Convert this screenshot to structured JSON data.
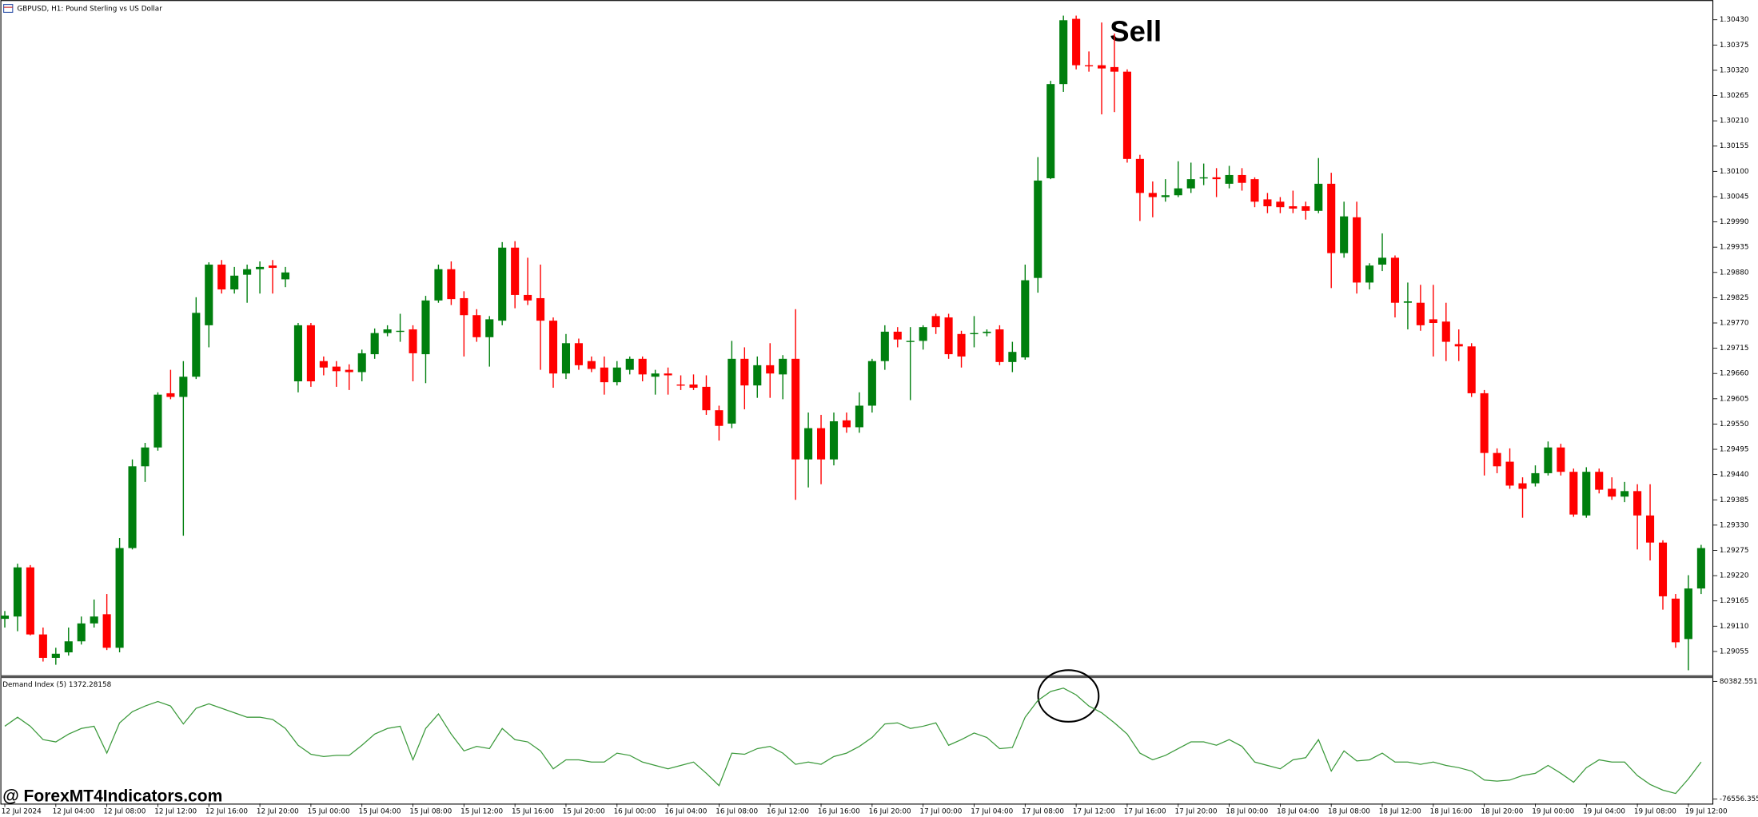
{
  "chart_data": [
    {
      "type": "candlestick",
      "title": "GBPUSD, H1:  Pound Sterling vs US Dollar",
      "annotation": "Sell",
      "categories": [
        "12 Jul 2024",
        null,
        null,
        null,
        "12 Jul 04:00",
        null,
        null,
        null,
        "12 Jul 08:00",
        null,
        null,
        null,
        "12 Jul 12:00",
        null,
        null,
        null,
        "12 Jul 16:00",
        null,
        null,
        null,
        "12 Jul 20:00",
        null,
        null,
        null,
        "15 Jul 00:00",
        null,
        null,
        null,
        "15 Jul 04:00",
        null,
        null,
        null,
        "15 Jul 08:00",
        null,
        null,
        null,
        "15 Jul 12:00",
        null,
        null,
        null,
        "15 Jul 16:00",
        null,
        null,
        null,
        "15 Jul 20:00",
        null,
        null,
        null,
        "16 Jul 00:00",
        null,
        null,
        null,
        "16 Jul 04:00",
        null,
        null,
        null,
        "16 Jul 08:00",
        null,
        null,
        null,
        "16 Jul 12:00",
        null,
        null,
        null,
        "16 Jul 16:00",
        null,
        null,
        null,
        "16 Jul 20:00",
        null,
        null,
        null,
        "17 Jul 00:00",
        null,
        null,
        null,
        "17 Jul 04:00",
        null,
        null,
        null,
        "17 Jul 08:00",
        null,
        null,
        null,
        "17 Jul 12:00",
        null,
        null,
        null,
        "17 Jul 16:00",
        null,
        null,
        null,
        "17 Jul 20:00",
        null,
        null,
        null,
        "18 Jul 00:00",
        null,
        null,
        null,
        "18 Jul 04:00",
        null,
        null,
        null,
        "18 Jul 08:00",
        null,
        null,
        null,
        "18 Jul 12:00",
        null,
        null,
        null,
        "18 Jul 16:00",
        null,
        null,
        null,
        "18 Jul 20:00",
        null,
        null,
        null,
        "19 Jul 00:00",
        null,
        null,
        null,
        "19 Jul 04:00",
        null,
        null,
        null,
        "19 Jul 08:00",
        null,
        null,
        null,
        "19 Jul 12:00",
        null
      ],
      "open": [
        1.29126,
        1.29131,
        1.29238,
        1.29092,
        1.29041,
        1.29053,
        1.29077,
        1.29116,
        1.29136,
        1.29063,
        1.2928,
        1.29458,
        1.29499,
        1.29617,
        1.29609,
        1.29653,
        1.29765,
        1.29897,
        1.29843,
        1.29875,
        1.29887,
        1.29895,
        1.29865,
        1.29643,
        1.29765,
        1.29687,
        1.29675,
        1.29668,
        1.29663,
        1.29702,
        1.29748,
        1.29751,
        1.29756,
        1.29702,
        1.29819,
        1.29887,
        1.29824,
        1.29787,
        1.29739,
        1.29775,
        1.29934,
        1.29831,
        1.29824,
        1.29775,
        1.2966,
        1.29726,
        1.29687,
        1.29673,
        1.29641,
        1.29668,
        1.29692,
        1.29653,
        1.2966,
        1.29636,
        1.29636,
        1.29631,
        1.2958,
        1.29551,
        1.29692,
        1.29634,
        1.29678,
        1.29658,
        1.29692,
        1.29473,
        1.29541,
        1.29473,
        1.29558,
        1.29543,
        1.2959,
        1.29687,
        1.29751,
        1.29731,
        1.29731,
        1.29785,
        1.29782,
        1.29746,
        1.29746,
        1.29748,
        1.29756,
        1.29685,
        1.29695,
        1.29868,
        1.30085,
        1.3029,
        1.30432,
        1.30331,
        1.30331,
        1.30327,
        1.30317,
        1.30127,
        1.30053,
        1.30044,
        1.30048,
        1.30063,
        1.30085,
        1.30087,
        1.30073,
        1.30092,
        1.30083,
        1.30039,
        1.30034,
        1.30024,
        1.30024,
        1.30014,
        1.30073,
        1.29922,
        1.3,
        1.29858,
        1.29897,
        1.29912,
        1.29814,
        1.29814,
        1.29778,
        1.29773,
        1.29724,
        1.29719,
        1.29617,
        1.29487,
        1.29468,
        1.29421,
        1.29421,
        1.29443,
        1.29499,
        1.29446,
        1.29351,
        1.29446,
        1.29409,
        1.29392,
        1.29404,
        1.29351,
        1.29292,
        1.2917,
        1.29082,
        1.29192
      ],
      "high": [
        1.29143,
        1.29246,
        1.29243,
        1.29107,
        1.29063,
        1.29107,
        1.29131,
        1.29168,
        1.2918,
        1.29302,
        1.29473,
        1.29509,
        1.29619,
        1.29668,
        1.29687,
        1.29826,
        1.29902,
        1.29907,
        1.29892,
        1.29897,
        1.29904,
        1.29907,
        1.29892,
        1.2977,
        1.2977,
        1.29697,
        1.29687,
        1.2968,
        1.29712,
        1.29758,
        1.29765,
        1.2979,
        1.29765,
        1.29829,
        1.29897,
        1.29904,
        1.29839,
        1.298,
        1.29785,
        1.29946,
        1.29948,
        1.29912,
        1.29897,
        1.29782,
        1.29746,
        1.29736,
        1.29697,
        1.29697,
        1.29687,
        1.29697,
        1.29697,
        1.29668,
        1.29673,
        1.29656,
        1.29658,
        1.29656,
        1.2959,
        1.29731,
        1.29717,
        1.29697,
        1.29726,
        1.297,
        1.298,
        1.29575,
        1.2957,
        1.29575,
        1.29575,
        1.29619,
        1.29692,
        1.29765,
        1.29761,
        1.29761,
        1.29765,
        1.2979,
        1.2979,
        1.29753,
        1.29785,
        1.29756,
        1.29765,
        1.29729,
        1.29897,
        1.30131,
        1.30297,
        1.30439,
        1.30439,
        1.30361,
        1.30424,
        1.304,
        1.30322,
        1.30136,
        1.30078,
        1.30083,
        1.30122,
        1.30119,
        1.30117,
        1.30107,
        1.30112,
        1.30107,
        1.30087,
        1.30053,
        1.30044,
        1.30058,
        1.30034,
        1.30129,
        1.30097,
        1.30034,
        1.30034,
        1.299,
        1.29965,
        1.29917,
        1.29858,
        1.29853,
        1.29853,
        1.29814,
        1.29756,
        1.29726,
        1.29624,
        1.29497,
        1.29497,
        1.29434,
        1.2946,
        1.29512,
        1.29507,
        1.29453,
        1.29456,
        1.29453,
        1.29434,
        1.29424,
        1.29419,
        1.29419,
        1.29297,
        1.2918,
        1.29221,
        1.29287
      ],
      "low": [
        1.29107,
        1.29099,
        1.2909,
        1.29033,
        1.29026,
        1.29046,
        1.2907,
        1.29107,
        1.29058,
        1.29053,
        1.29277,
        1.29424,
        1.29492,
        1.29604,
        1.29307,
        1.29648,
        1.29717,
        1.29834,
        1.29834,
        1.29814,
        1.29834,
        1.29834,
        1.29848,
        1.29619,
        1.29631,
        1.29656,
        1.29631,
        1.29624,
        1.29643,
        1.29692,
        1.29741,
        1.29729,
        1.29643,
        1.29639,
        1.29814,
        1.29809,
        1.29697,
        1.29729,
        1.29675,
        1.29765,
        1.29802,
        1.29809,
        1.29668,
        1.29629,
        1.29648,
        1.29668,
        1.29663,
        1.29614,
        1.29634,
        1.29658,
        1.29643,
        1.29614,
        1.29614,
        1.29624,
        1.29624,
        1.2957,
        1.29514,
        1.29541,
        1.29582,
        1.29607,
        1.29607,
        1.29604,
        1.29385,
        1.29412,
        1.29419,
        1.2946,
        1.29531,
        1.29531,
        1.29575,
        1.29668,
        1.29717,
        1.29602,
        1.29712,
        1.29746,
        1.29692,
        1.29673,
        1.29717,
        1.29741,
        1.29678,
        1.29663,
        1.2969,
        1.29836,
        1.30083,
        1.30273,
        1.30322,
        1.30317,
        1.30224,
        1.30229,
        1.30119,
        1.29992,
        1.3,
        1.30034,
        1.30044,
        1.30053,
        1.3007,
        1.30044,
        1.30063,
        1.30058,
        1.30022,
        1.30009,
        1.30009,
        1.30009,
        1.29995,
        1.30009,
        1.29846,
        1.29912,
        1.29834,
        1.29843,
        1.29883,
        1.29782,
        1.29756,
        1.29753,
        1.29697,
        1.29687,
        1.29687,
        1.29609,
        1.29438,
        1.29443,
        1.29409,
        1.29346,
        1.29414,
        1.29438,
        1.29438,
        1.29348,
        1.29346,
        1.29399,
        1.29385,
        1.2938,
        1.29277,
        1.29253,
        1.29146,
        1.29063,
        1.29014,
        1.2918
      ],
      "close": [
        1.29133,
        1.29238,
        1.29092,
        1.29041,
        1.2905,
        1.29077,
        1.29116,
        1.29131,
        1.29063,
        1.2928,
        1.29458,
        1.29499,
        1.29614,
        1.29609,
        1.29653,
        1.29792,
        1.29897,
        1.29843,
        1.29873,
        1.29887,
        1.29892,
        1.2989,
        1.2988,
        1.29765,
        1.29643,
        1.29673,
        1.29665,
        1.29663,
        1.29704,
        1.29748,
        1.29756,
        1.29753,
        1.29704,
        1.29819,
        1.29887,
        1.29822,
        1.29787,
        1.29739,
        1.29778,
        1.29934,
        1.29831,
        1.29819,
        1.29775,
        1.2966,
        1.29726,
        1.29678,
        1.2967,
        1.29641,
        1.29673,
        1.29692,
        1.29658,
        1.2966,
        1.29656,
        1.29634,
        1.29629,
        1.2958,
        1.29546,
        1.29692,
        1.29634,
        1.29678,
        1.2966,
        1.29692,
        1.29473,
        1.29541,
        1.29473,
        1.29556,
        1.29543,
        1.2959,
        1.29687,
        1.29751,
        1.29734,
        1.29731,
        1.29761,
        1.29761,
        1.29702,
        1.29697,
        1.29748,
        1.29751,
        1.29685,
        1.29707,
        1.29863,
        1.3008,
        1.3029,
        1.30429,
        1.30331,
        1.30329,
        1.30324,
        1.30317,
        1.30127,
        1.30053,
        1.30044,
        1.30048,
        1.30063,
        1.30083,
        1.30087,
        1.30083,
        1.30092,
        1.30075,
        1.30034,
        1.30024,
        1.30022,
        1.30019,
        1.30014,
        1.30073,
        1.29922,
        1.30002,
        1.29858,
        1.29895,
        1.29912,
        1.29814,
        1.29817,
        1.29765,
        1.2977,
        1.29729,
        1.29719,
        1.29617,
        1.29487,
        1.29458,
        1.29416,
        1.29409,
        1.29443,
        1.29499,
        1.29446,
        1.29353,
        1.29446,
        1.29407,
        1.29392,
        1.29404,
        1.29351,
        1.29292,
        1.29175,
        1.29075,
        1.29192,
        1.2928
      ],
      "up_color": "#007f0e",
      "down_color": "#ff0000",
      "ylim": [
        1.29002,
        1.30473
      ],
      "yticks": [
        {
          "value": 1.3043,
          "label": "1.30430"
        },
        1.30375,
        {
          "value": 1.3032,
          "label": "1.30320"
        },
        1.30265,
        {
          "value": 1.3021,
          "label": "1.30210"
        },
        1.30155,
        {
          "value": 1.301,
          "label": "1.30100"
        },
        1.30045,
        {
          "value": 1.2999,
          "label": "1.29990"
        },
        1.29935,
        {
          "value": 1.2988,
          "label": "1.29880"
        },
        1.29825,
        {
          "value": 1.2977,
          "label": "1.29770"
        },
        1.29715,
        {
          "value": 1.2966,
          "label": "1.29660"
        },
        1.29605,
        {
          "value": 1.2955,
          "label": "1.29550"
        },
        1.29495,
        {
          "value": 1.2944,
          "label": "1.29440"
        },
        1.29385,
        {
          "value": 1.2933,
          "label": "1.29330"
        },
        1.29275,
        {
          "value": 1.2922,
          "label": "1.29220"
        },
        1.29165,
        {
          "value": 1.2911,
          "label": "1.29110"
        },
        1.29055
      ]
    },
    {
      "type": "line",
      "title": "Demand Index (5) 1372.28158",
      "values": [
        20600,
        32600,
        20600,
        2700,
        -300,
        10100,
        17600,
        20600,
        -15300,
        25100,
        40000,
        47500,
        53500,
        47500,
        23600,
        44500,
        50500,
        44500,
        38500,
        32600,
        32600,
        29600,
        17600,
        -4800,
        -16800,
        -19800,
        -18300,
        -18300,
        -4800,
        10100,
        17600,
        20600,
        -24200,
        17600,
        37000,
        10100,
        -12300,
        -6300,
        -9300,
        17600,
        2700,
        -300,
        -12300,
        -36200,
        -24200,
        -24200,
        -27200,
        -27200,
        -15300,
        -18300,
        -27200,
        -31700,
        -36200,
        -31700,
        -27200,
        -42200,
        -58600,
        -15300,
        -16800,
        -9300,
        -6300,
        -15300,
        -30200,
        -27200,
        -30200,
        -19800,
        -15300,
        -6300,
        5600,
        23600,
        25100,
        17600,
        20600,
        25100,
        -4800,
        2700,
        11600,
        5600,
        -9300,
        -7800,
        32600,
        55000,
        66900,
        71400,
        62400,
        47500,
        38500,
        25100,
        10100,
        -15300,
        -24200,
        -18300,
        -9300,
        -300,
        -300,
        -4800,
        2700,
        -6300,
        -27200,
        -31700,
        -36200,
        -24200,
        -21300,
        2700,
        -39200,
        -12300,
        -25700,
        -24200,
        -15300,
        -27200,
        -27200,
        -30200,
        -27200,
        -31700,
        -34700,
        -39200,
        -51200,
        -52600,
        -51200,
        -45200,
        -42200,
        -31700,
        -42200,
        -54100,
        -34700,
        -24200,
        -27200,
        -27200,
        -45200,
        -57100,
        -64600,
        -69100,
        -49700,
        -27200
      ],
      "color": "#3c9a3c",
      "ylim": [
        -76556.3551,
        80382.5514
      ],
      "yticks": [
        80382.5514,
        -76556.3551
      ]
    }
  ],
  "watermark": "@ ForexMT4Indicators.com"
}
